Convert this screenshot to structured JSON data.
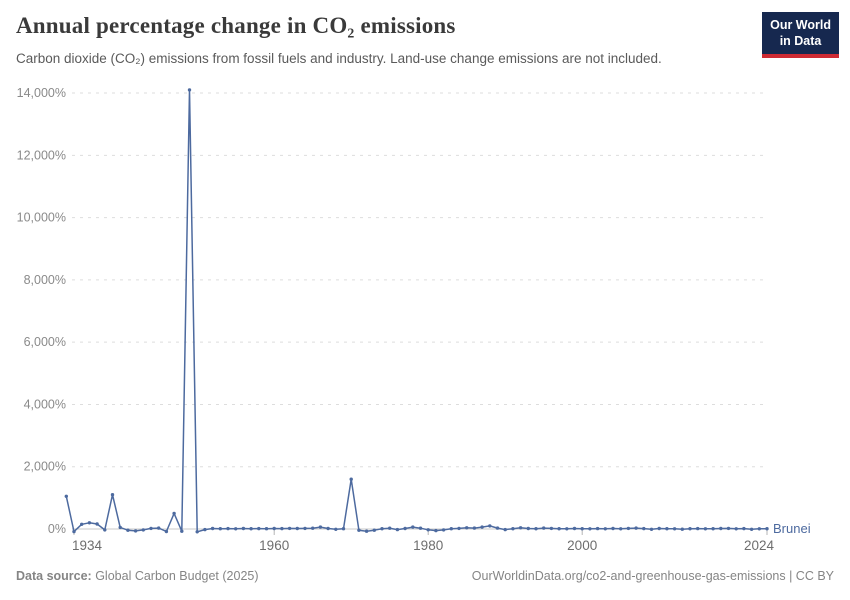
{
  "header": {
    "title": "Annual percentage change in CO₂ emissions",
    "subtitle": "Carbon dioxide (CO₂) emissions from fossil fuels and industry. Land-use change emissions are not included.",
    "logo_line1": "Our World",
    "logo_line2": "in Data"
  },
  "footer": {
    "source_label": "Data source:",
    "source_value": " Global Carbon Budget (2025)",
    "link": "OurWorldinData.org/co2-and-greenhouse-gas-emissions | CC BY"
  },
  "colors": {
    "line": "#4d6a9f",
    "series_label": "#4d6a9f",
    "logo_bg": "#16284f",
    "logo_bar": "#ce2a33",
    "grid": "#dddddd",
    "axis_line": "#c9c9c9",
    "tick_mark": "#b5b5b5",
    "y_label": "#8a8a8a",
    "x_label": "#6e6e6e"
  },
  "chart_data": {
    "type": "line",
    "title": "Annual percentage change in CO₂ emissions",
    "xlabel": "",
    "ylabel": "",
    "grid": "horizontal-dashed",
    "legend_position": "series-end-label",
    "x_range": [
      1933,
      2024
    ],
    "y_range": [
      -100,
      14150
    ],
    "x_ticks": [
      1934,
      1960,
      1980,
      2000,
      2024
    ],
    "y_ticks": [
      0,
      2000,
      4000,
      6000,
      8000,
      10000,
      12000,
      14000
    ],
    "y_tick_suffix": "%",
    "series": [
      {
        "name": "Brunei",
        "points": [
          [
            1933,
            1050
          ],
          [
            1934,
            -85
          ],
          [
            1935,
            150
          ],
          [
            1936,
            200
          ],
          [
            1937,
            160
          ],
          [
            1938,
            -30
          ],
          [
            1939,
            1100
          ],
          [
            1940,
            50
          ],
          [
            1941,
            -40
          ],
          [
            1942,
            -60
          ],
          [
            1943,
            -30
          ],
          [
            1944,
            20
          ],
          [
            1945,
            30
          ],
          [
            1946,
            -80
          ],
          [
            1947,
            500
          ],
          [
            1948,
            -70
          ],
          [
            1949,
            14100
          ],
          [
            1950,
            -90
          ],
          [
            1951,
            -20
          ],
          [
            1952,
            15
          ],
          [
            1953,
            10
          ],
          [
            1954,
            12
          ],
          [
            1955,
            8
          ],
          [
            1956,
            15
          ],
          [
            1957,
            10
          ],
          [
            1958,
            12
          ],
          [
            1959,
            10
          ],
          [
            1960,
            15
          ],
          [
            1961,
            12
          ],
          [
            1962,
            18
          ],
          [
            1963,
            15
          ],
          [
            1964,
            20
          ],
          [
            1965,
            25
          ],
          [
            1966,
            60
          ],
          [
            1967,
            15
          ],
          [
            1968,
            -10
          ],
          [
            1969,
            10
          ],
          [
            1970,
            1600
          ],
          [
            1971,
            -40
          ],
          [
            1972,
            -70
          ],
          [
            1973,
            -40
          ],
          [
            1974,
            10
          ],
          [
            1975,
            25
          ],
          [
            1976,
            -20
          ],
          [
            1977,
            15
          ],
          [
            1978,
            60
          ],
          [
            1979,
            25
          ],
          [
            1980,
            -25
          ],
          [
            1981,
            -50
          ],
          [
            1982,
            -30
          ],
          [
            1983,
            10
          ],
          [
            1984,
            20
          ],
          [
            1985,
            40
          ],
          [
            1986,
            30
          ],
          [
            1987,
            60
          ],
          [
            1988,
            100
          ],
          [
            1989,
            30
          ],
          [
            1990,
            -20
          ],
          [
            1991,
            10
          ],
          [
            1992,
            40
          ],
          [
            1993,
            15
          ],
          [
            1994,
            10
          ],
          [
            1995,
            30
          ],
          [
            1996,
            20
          ],
          [
            1997,
            10
          ],
          [
            1998,
            5
          ],
          [
            1999,
            15
          ],
          [
            2000,
            10
          ],
          [
            2001,
            5
          ],
          [
            2002,
            12
          ],
          [
            2003,
            8
          ],
          [
            2004,
            15
          ],
          [
            2005,
            5
          ],
          [
            2006,
            18
          ],
          [
            2007,
            30
          ],
          [
            2008,
            12
          ],
          [
            2009,
            -10
          ],
          [
            2010,
            15
          ],
          [
            2011,
            10
          ],
          [
            2012,
            8
          ],
          [
            2013,
            -5
          ],
          [
            2014,
            10
          ],
          [
            2015,
            12
          ],
          [
            2016,
            5
          ],
          [
            2017,
            10
          ],
          [
            2018,
            15
          ],
          [
            2019,
            20
          ],
          [
            2020,
            5
          ],
          [
            2021,
            12
          ],
          [
            2022,
            -10
          ],
          [
            2023,
            8
          ],
          [
            2024,
            10
          ]
        ]
      }
    ]
  }
}
